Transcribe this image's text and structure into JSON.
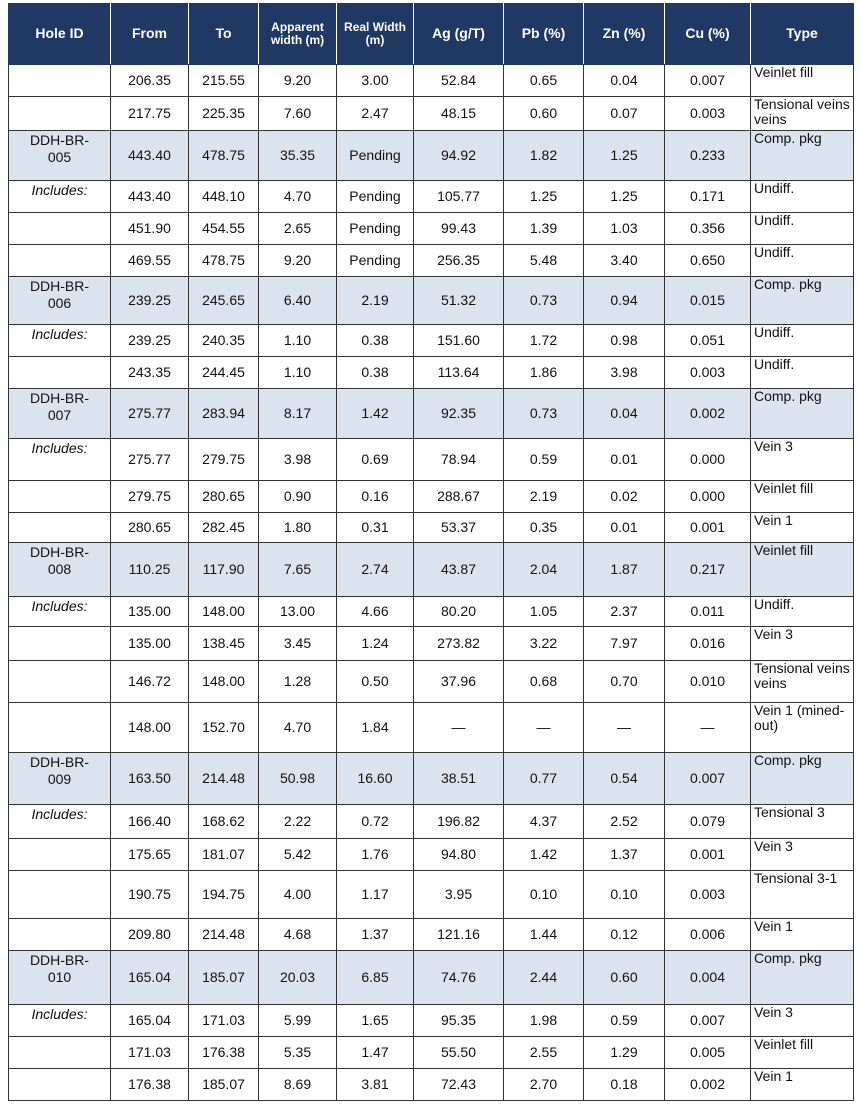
{
  "table": {
    "headers": [
      "Hole ID",
      "From",
      "To",
      "Apparent width (m)",
      "Real Width (m)",
      "Ag (g/T)",
      "Pb (%)",
      "Zn (%)",
      "Cu (%)",
      "Type"
    ],
    "rows": [
      [
        null,
        "206.35",
        "215.55",
        "9.20",
        "3.00",
        "52.84",
        "0.65",
        "0.04",
        "0.007",
        "Veinlet fill"
      ],
      [
        null,
        "217.75",
        "225.35",
        "7.60",
        "2.47",
        "48.15",
        "0.60",
        "0.07",
        "0.003",
        "Tensional veins veins"
      ],
      [
        "DDH-BR-005",
        "443.40",
        "478.75",
        "35.35",
        "Pending",
        "94.92",
        "1.82",
        "1.25",
        "0.233",
        "Comp. pkg"
      ],
      [
        "Includes:",
        "443.40",
        "448.10",
        "4.70",
        "Pending",
        "105.77",
        "1.25",
        "1.25",
        "0.171",
        "Undiff."
      ],
      [
        null,
        "451.90",
        "454.55",
        "2.65",
        "Pending",
        "99.43",
        "1.39",
        "1.03",
        "0.356",
        "Undiff."
      ],
      [
        null,
        "469.55",
        "478.75",
        "9.20",
        "Pending",
        "256.35",
        "5.48",
        "3.40",
        "0.650",
        "Undiff."
      ],
      [
        "DDH-BR-006",
        "239.25",
        "245.65",
        "6.40",
        "2.19",
        "51.32",
        "0.73",
        "0.94",
        "0.015",
        "Comp. pkg"
      ],
      [
        "Includes:",
        "239.25",
        "240.35",
        "1.10",
        "0.38",
        "151.60",
        "1.72",
        "0.98",
        "0.051",
        "Undiff."
      ],
      [
        null,
        "243.35",
        "244.45",
        "1.10",
        "0.38",
        "113.64",
        "1.86",
        "3.98",
        "0.003",
        "Undiff."
      ],
      [
        "DDH-BR-007",
        "275.77",
        "283.94",
        "8.17",
        "1.42",
        "92.35",
        "0.73",
        "0.04",
        "0.002",
        "Comp. pkg"
      ],
      [
        "Includes:",
        "275.77",
        "279.75",
        "3.98",
        "0.69",
        "78.94",
        "0.59",
        "0.01",
        "0.000",
        "Vein 3"
      ],
      [
        null,
        "279.75",
        "280.65",
        "0.90",
        "0.16",
        "288.67",
        "2.19",
        "0.02",
        "0.000",
        "Veinlet fill"
      ],
      [
        null,
        "280.65",
        "282.45",
        "1.80",
        "0.31",
        "53.37",
        "0.35",
        "0.01",
        "0.001",
        "Vein 1"
      ],
      [
        "DDH-BR-008",
        "110.25",
        "117.90",
        "7.65",
        "2.74",
        "43.87",
        "2.04",
        "1.87",
        "0.217",
        "Veinlet fill"
      ],
      [
        "Includes:",
        "135.00",
        "148.00",
        "13.00",
        "4.66",
        "80.20",
        "1.05",
        "2.37",
        "0.011",
        "Undiff."
      ],
      [
        null,
        "135.00",
        "138.45",
        "3.45",
        "1.24",
        "273.82",
        "3.22",
        "7.97",
        "0.016",
        "Vein 3"
      ],
      [
        null,
        "146.72",
        "148.00",
        "1.28",
        "0.50",
        "37.96",
        "0.68",
        "0.70",
        "0.010",
        "Tensional veins veins"
      ],
      [
        null,
        "148.00",
        "152.70",
        "4.70",
        "1.84",
        "—",
        "—",
        "—",
        "—",
        "Vein 1 (mined-out)"
      ],
      [
        "DDH-BR-009",
        "163.50",
        "214.48",
        "50.98",
        "16.60",
        "38.51",
        "0.77",
        "0.54",
        "0.007",
        "Comp. pkg"
      ],
      [
        "Includes:",
        "166.40",
        "168.62",
        "2.22",
        "0.72",
        "196.82",
        "4.37",
        "2.52",
        "0.079",
        "Tensional 3"
      ],
      [
        null,
        "175.65",
        "181.07",
        "5.42",
        "1.76",
        "94.80",
        "1.42",
        "1.37",
        "0.001",
        "Vein 3"
      ],
      [
        null,
        "190.75",
        "194.75",
        "4.00",
        "1.17",
        "3.95",
        "0.10",
        "0.10",
        "0.003",
        "Tensional 3-1"
      ],
      [
        null,
        "209.80",
        "214.48",
        "4.68",
        "1.37",
        "121.16",
        "1.44",
        "0.12",
        "0.006",
        "Vein 1"
      ],
      [
        "DDH-BR-010",
        "165.04",
        "185.07",
        "20.03",
        "6.85",
        "74.76",
        "2.44",
        "0.60",
        "0.004",
        "Comp. pkg"
      ],
      [
        "Includes:",
        "165.04",
        "171.03",
        "5.99",
        "1.65",
        "95.35",
        "1.98",
        "0.59",
        "0.007",
        "Vein 3"
      ],
      [
        null,
        "171.03",
        "176.38",
        "5.35",
        "1.47",
        "55.50",
        "2.55",
        "1.29",
        "0.005",
        "Veinlet fill"
      ],
      [
        null,
        "176.38",
        "185.07",
        "8.69",
        "3.81",
        "72.43",
        "2.70",
        "0.18",
        "0.002",
        "Vein 1"
      ]
    ]
  }
}
